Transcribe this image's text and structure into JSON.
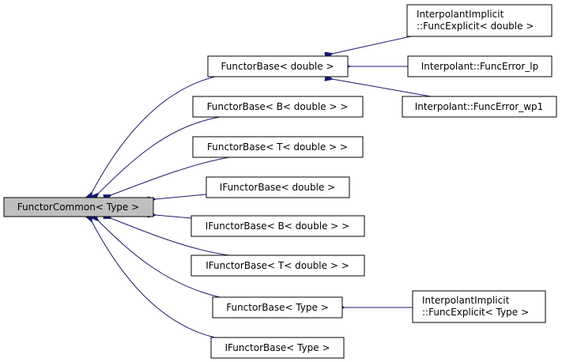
{
  "colors": {
    "edge": "#191970",
    "root_fill": "#bfbfbf",
    "node_fill": "#ffffff"
  },
  "nodes": {
    "root": "FunctorCommon< Type >",
    "fb_double": "FunctorBase< double >",
    "fb_b": "FunctorBase< B< double > >",
    "fb_t": "FunctorBase< T< double > >",
    "ifb_double": "IFunctorBase< double >",
    "ifb_b": "IFunctorBase< B< double > >",
    "ifb_t": "IFunctorBase< T< double > >",
    "fb_type": "FunctorBase< Type >",
    "ifb_type": "IFunctorBase< Type >",
    "iife_double": [
      "InterpolantImplicit",
      "::FuncExplicit< double >"
    ],
    "fe_lp": "Interpolant::FuncError_lp",
    "fe_wp1": "Interpolant::FuncError_wp1",
    "iife_type": [
      "InterpolantImplicit",
      "::FuncExplicit< Type >"
    ]
  }
}
